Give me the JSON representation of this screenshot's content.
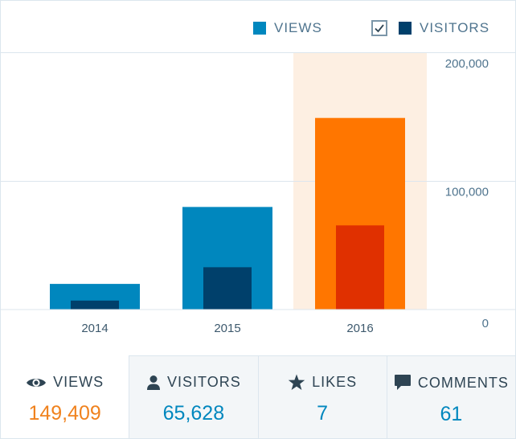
{
  "legend": {
    "views_label": "VIEWS",
    "visitors_label": "VISITORS",
    "visitors_checked": true
  },
  "colors": {
    "views": "#0087be",
    "visitors": "#00406b",
    "views_selected": "#ff7600",
    "visitors_selected": "#e03000",
    "highlight": "#fdefe2",
    "axis_text": "#4f748e",
    "grid": "#dce6ee"
  },
  "chart_data": {
    "type": "bar",
    "categories": [
      "2014",
      "2015",
      "2016"
    ],
    "series": [
      {
        "name": "VIEWS",
        "values": [
          20000,
          80000,
          149409
        ]
      },
      {
        "name": "VISITORS",
        "values": [
          7000,
          33000,
          65628
        ]
      }
    ],
    "selected_category": "2016",
    "ylim": [
      0,
      200000
    ],
    "yticks": [
      "200,000",
      "100,000",
      "0"
    ],
    "ytick_values": [
      200000,
      100000,
      0
    ],
    "title": "",
    "xlabel": "",
    "ylabel": ""
  },
  "stats": [
    {
      "icon": "eye-icon",
      "label": "VIEWS",
      "value": "149,409",
      "active": true
    },
    {
      "icon": "person-icon",
      "label": "VISITORS",
      "value": "65,628",
      "active": false
    },
    {
      "icon": "star-icon",
      "label": "LIKES",
      "value": "7",
      "active": false
    },
    {
      "icon": "comment-icon",
      "label": "COMMENTS",
      "value": "61",
      "active": false
    }
  ]
}
